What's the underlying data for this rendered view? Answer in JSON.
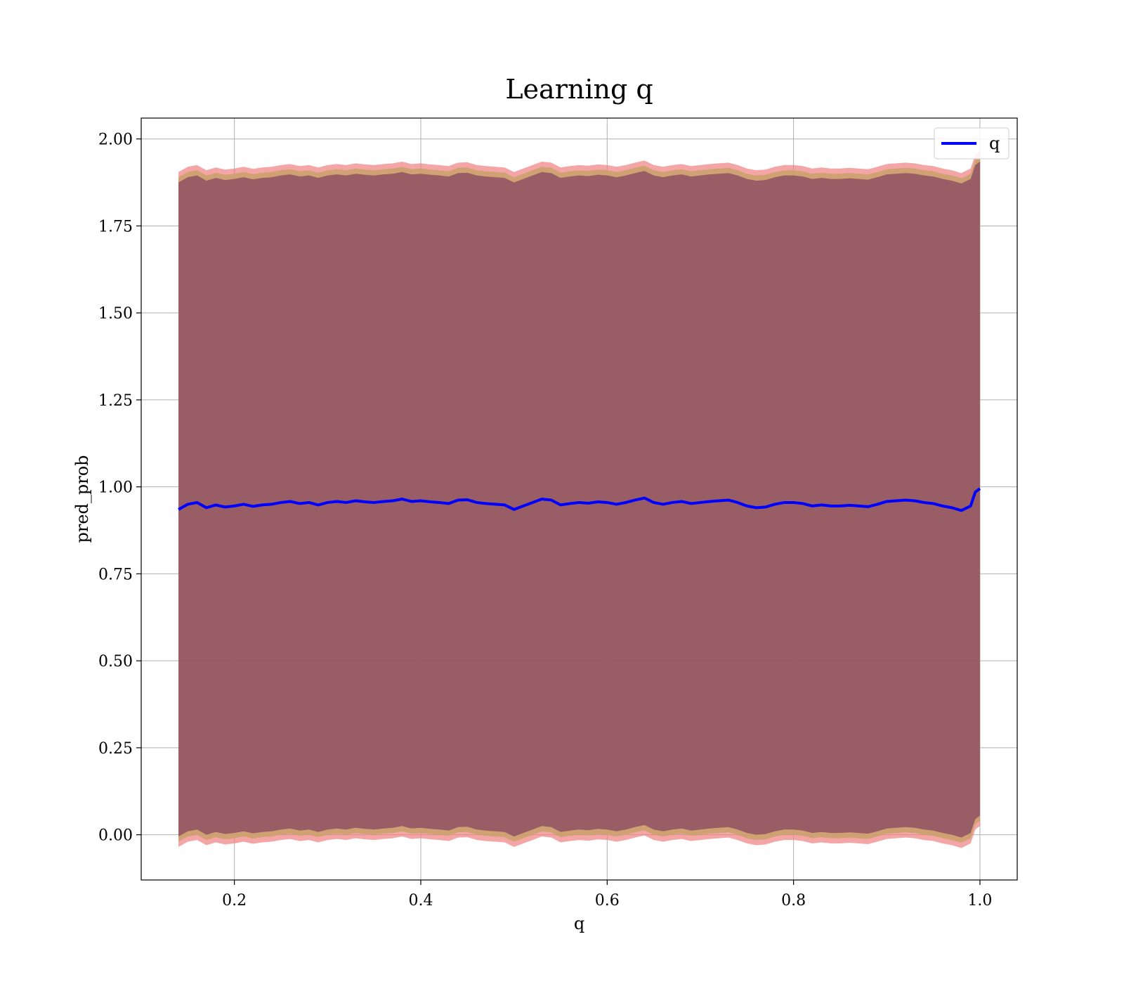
{
  "chart_data": {
    "type": "line",
    "title": "Learning q",
    "xlabel": "q",
    "ylabel": "pred_prob",
    "xlim": [
      0.1,
      1.04
    ],
    "ylim": [
      -0.13,
      2.06
    ],
    "xticks": [
      "0.2",
      "0.4",
      "0.6",
      "0.8",
      "1.0"
    ],
    "yticks": [
      "0.00",
      "0.25",
      "0.50",
      "0.75",
      "1.00",
      "1.25",
      "1.50",
      "1.75",
      "2.00"
    ],
    "grid": true,
    "legend_position": "top-right",
    "colors": {
      "line": "#0000ff",
      "band_outer": "#f08080",
      "band_mid": "#c9a06a",
      "band_inner": "#8b4e62",
      "grid": "#b0b0b0"
    },
    "series": [
      {
        "name": "q",
        "x": [
          0.14,
          0.15,
          0.16,
          0.17,
          0.18,
          0.19,
          0.2,
          0.21,
          0.22,
          0.23,
          0.24,
          0.25,
          0.26,
          0.27,
          0.28,
          0.29,
          0.3,
          0.31,
          0.32,
          0.33,
          0.34,
          0.35,
          0.36,
          0.37,
          0.38,
          0.39,
          0.4,
          0.41,
          0.42,
          0.43,
          0.44,
          0.45,
          0.46,
          0.47,
          0.48,
          0.49,
          0.5,
          0.51,
          0.52,
          0.53,
          0.54,
          0.55,
          0.56,
          0.57,
          0.58,
          0.59,
          0.6,
          0.61,
          0.62,
          0.63,
          0.64,
          0.65,
          0.66,
          0.67,
          0.68,
          0.69,
          0.7,
          0.71,
          0.72,
          0.73,
          0.74,
          0.75,
          0.76,
          0.77,
          0.78,
          0.79,
          0.8,
          0.81,
          0.82,
          0.83,
          0.84,
          0.85,
          0.86,
          0.87,
          0.88,
          0.89,
          0.9,
          0.91,
          0.92,
          0.93,
          0.94,
          0.95,
          0.96,
          0.97,
          0.98,
          0.99,
          0.995,
          1.0
        ],
        "values": [
          0.935,
          0.95,
          0.955,
          0.94,
          0.948,
          0.942,
          0.945,
          0.95,
          0.944,
          0.948,
          0.95,
          0.955,
          0.958,
          0.952,
          0.955,
          0.948,
          0.955,
          0.958,
          0.955,
          0.96,
          0.957,
          0.955,
          0.958,
          0.96,
          0.965,
          0.958,
          0.96,
          0.957,
          0.955,
          0.952,
          0.962,
          0.963,
          0.955,
          0.952,
          0.95,
          0.948,
          0.935,
          0.945,
          0.955,
          0.965,
          0.962,
          0.948,
          0.952,
          0.955,
          0.953,
          0.957,
          0.955,
          0.95,
          0.955,
          0.962,
          0.968,
          0.955,
          0.95,
          0.955,
          0.958,
          0.952,
          0.955,
          0.958,
          0.96,
          0.962,
          0.955,
          0.945,
          0.94,
          0.942,
          0.95,
          0.955,
          0.955,
          0.952,
          0.945,
          0.948,
          0.945,
          0.945,
          0.947,
          0.945,
          0.943,
          0.95,
          0.958,
          0.96,
          0.962,
          0.96,
          0.955,
          0.952,
          0.945,
          0.94,
          0.932,
          0.945,
          0.985,
          0.995
        ]
      }
    ]
  }
}
